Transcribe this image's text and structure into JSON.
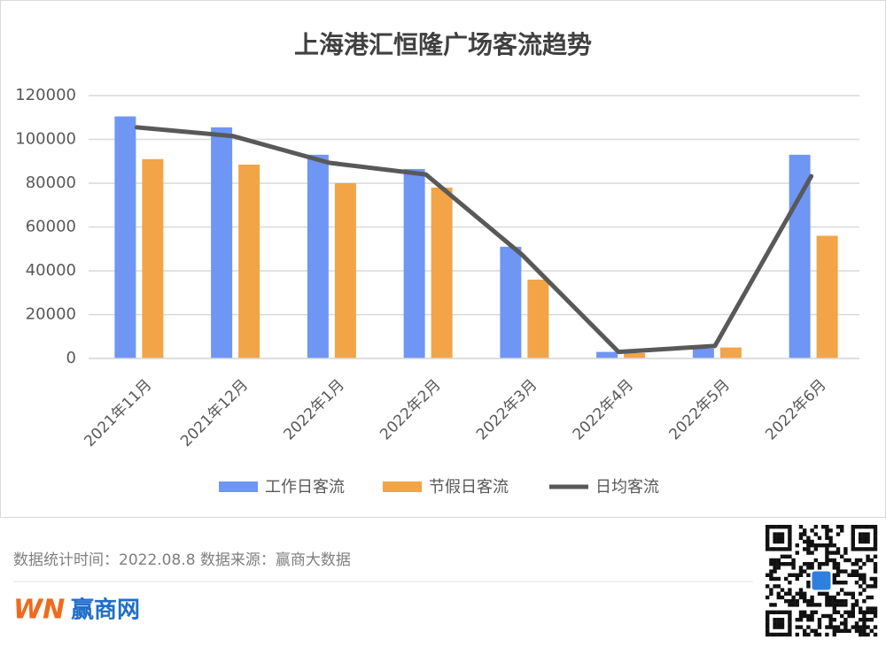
{
  "chart_data": {
    "type": "bar",
    "title": "上海港汇恒隆广场客流趋势",
    "categories": [
      "2021年11月",
      "2021年12月",
      "2022年1月",
      "2022年2月",
      "2022年3月",
      "2022年4月",
      "2022年5月",
      "2022年6月"
    ],
    "series": [
      {
        "name": "工作日客流",
        "type": "bar",
        "color": "#6f96f5",
        "values": [
          110500,
          105500,
          93000,
          86500,
          51000,
          3000,
          4500,
          93000
        ]
      },
      {
        "name": "节假日客流",
        "type": "bar",
        "color": "#f2a447",
        "values": [
          91000,
          88500,
          80000,
          78000,
          36000,
          2500,
          5000,
          56000
        ]
      },
      {
        "name": "日均客流",
        "type": "line",
        "color": "#595959",
        "values": [
          105500,
          101500,
          89300,
          84000,
          47300,
          3000,
          5700,
          83200
        ]
      }
    ],
    "ylim": [
      0,
      120000
    ],
    "yticks": [
      0,
      20000,
      40000,
      60000,
      80000,
      100000,
      120000
    ],
    "grid": true,
    "legend": "bottom"
  },
  "footer": {
    "note": "数据统计时间：2022.08.8 数据来源：赢商大数据",
    "logo_mark": "WN",
    "logo_name": "赢商网"
  }
}
